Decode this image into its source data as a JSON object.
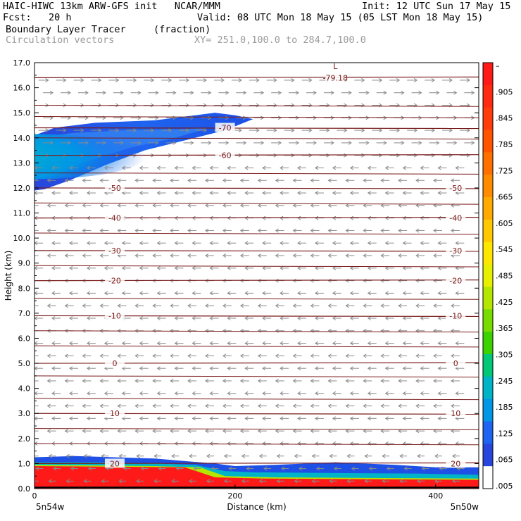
{
  "header": {
    "line1_left": "HAIC-HIWC 13km ARW-GFS init   NCAR/MMM",
    "line1_right": "Init: 12 UTC Sun 17 May 15",
    "line2_left": "Fcst:   20 h",
    "line2_right": "Valid: 08 UTC Mon 18 May 15 (05 LST Mon 18 May 15)",
    "line3_left": "Boundary Layer Tracer",
    "line3_units": "(fraction)",
    "line4_left": "Circulation vectors",
    "line4_xy": "XY= 251.0,100.0 to 284.7,100.0"
  },
  "chart_data": {
    "type": "heatmap",
    "xlabel": "Distance (km)",
    "ylabel": "Height (km)",
    "xlim": [
      0,
      443
    ],
    "ylim": [
      0,
      17
    ],
    "x_ticks": [
      "0",
      "200",
      "400"
    ],
    "x_tick_values": [
      0,
      200,
      400
    ],
    "y_ticks": [
      "0.0",
      "1.0",
      "2.0",
      "3.0",
      "4.0",
      "5.0",
      "6.0",
      "7.0",
      "8.0",
      "9.0",
      "10.0",
      "11.0",
      "12.0",
      "13.0",
      "14.0",
      "15.0",
      "16.0",
      "17.0"
    ],
    "endpoint_left": "5n54w",
    "endpoint_right": "5n50w",
    "colorbar_labels": [
      "–",
      ".905",
      ".845",
      ".785",
      ".725",
      ".665",
      ".605",
      ".545",
      ".485",
      ".425",
      ".365",
      ".305",
      ".245",
      ".185",
      ".125",
      ".065",
      ".005"
    ],
    "colorbar_colors": [
      "#ff1a1a",
      "#ff2a12",
      "#ff3d0a",
      "#ff5500",
      "#ff7000",
      "#ff8c00",
      "#ffaa00",
      "#ffc800",
      "#ffe600",
      "#e6f000",
      "#b4e600",
      "#78dc00",
      "#3cd200",
      "#00c878",
      "#00b4c8",
      "#0096e6",
      "#1e64f0",
      "#2846dc",
      "#ffffff"
    ],
    "temperature_contours": [
      {
        "label": "-79.18",
        "height_km": 16.4
      },
      {
        "label": "-70",
        "height_km": 14.4
      },
      {
        "label": "-60",
        "height_km": 13.3
      },
      {
        "label": "-50",
        "height_km": 12.0
      },
      {
        "label": "-40",
        "height_km": 10.8
      },
      {
        "label": "-30",
        "height_km": 9.5
      },
      {
        "label": "-20",
        "height_km": 8.3
      },
      {
        "label": "-10",
        "height_km": 6.9
      },
      {
        "label": "0",
        "height_km": 5.0
      },
      {
        "label": "10",
        "height_km": 3.0
      },
      {
        "label": "20",
        "height_km": 1.0
      }
    ],
    "low_marker": "L",
    "contour_color": "#7a1a1a",
    "vector_color": "#8a8a8a",
    "tracer_upper_layer": {
      "x_km": [
        0,
        220
      ],
      "height_km": [
        11.9,
        14.8
      ],
      "max_fraction": 0.16
    },
    "tracer_boundary_layer": {
      "top_km": 1.2,
      "max_fraction": 1.0
    }
  }
}
